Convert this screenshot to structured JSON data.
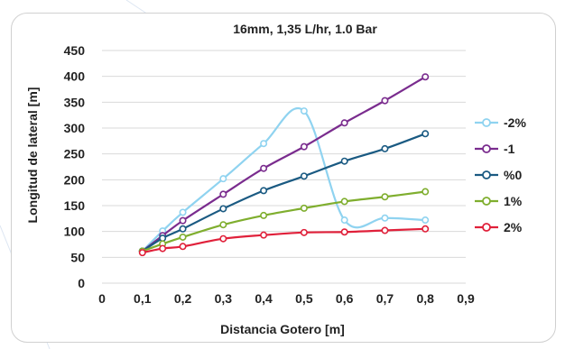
{
  "chart_data": {
    "type": "line",
    "title": "16mm, 1,35 L/hr, 1.0 Bar",
    "xlabel": "Distancia Gotero [m]",
    "ylabel": "Longitud de lateral [m]",
    "xlim": [
      0,
      0.9
    ],
    "ylim": [
      0,
      450
    ],
    "x_ticks": [
      "0",
      "0,1",
      "0,2",
      "0,3",
      "0,4",
      "0,5",
      "0,6",
      "0,7",
      "0,8",
      "0,9"
    ],
    "y_ticks": [
      "0",
      "50",
      "100",
      "150",
      "200",
      "250",
      "300",
      "350",
      "400",
      "450"
    ],
    "grid": "horizontal",
    "legend_position": "right",
    "x": [
      0.1,
      0.15,
      0.2,
      0.3,
      0.4,
      0.5,
      0.6,
      0.7,
      0.8
    ],
    "series": [
      {
        "name": "-2%",
        "color": "#8fd3f0",
        "values": [
          62,
          101,
          137,
          202,
          270,
          333,
          122,
          126,
          122
        ]
      },
      {
        "name": "-1",
        "color": "#7a2c8e",
        "values": [
          62,
          92,
          121,
          172,
          222,
          264,
          310,
          353,
          399
        ]
      },
      {
        "name": "%0",
        "color": "#1a5a82",
        "values": [
          62,
          87,
          105,
          144,
          179,
          207,
          236,
          260,
          289
        ]
      },
      {
        "name": "1%",
        "color": "#7fae2e",
        "values": [
          62,
          76,
          89,
          113,
          131,
          145,
          158,
          167,
          177
        ]
      },
      {
        "name": "2%",
        "color": "#e0203a",
        "values": [
          59,
          67,
          71,
          86,
          93,
          98,
          99,
          102,
          105
        ]
      }
    ]
  }
}
